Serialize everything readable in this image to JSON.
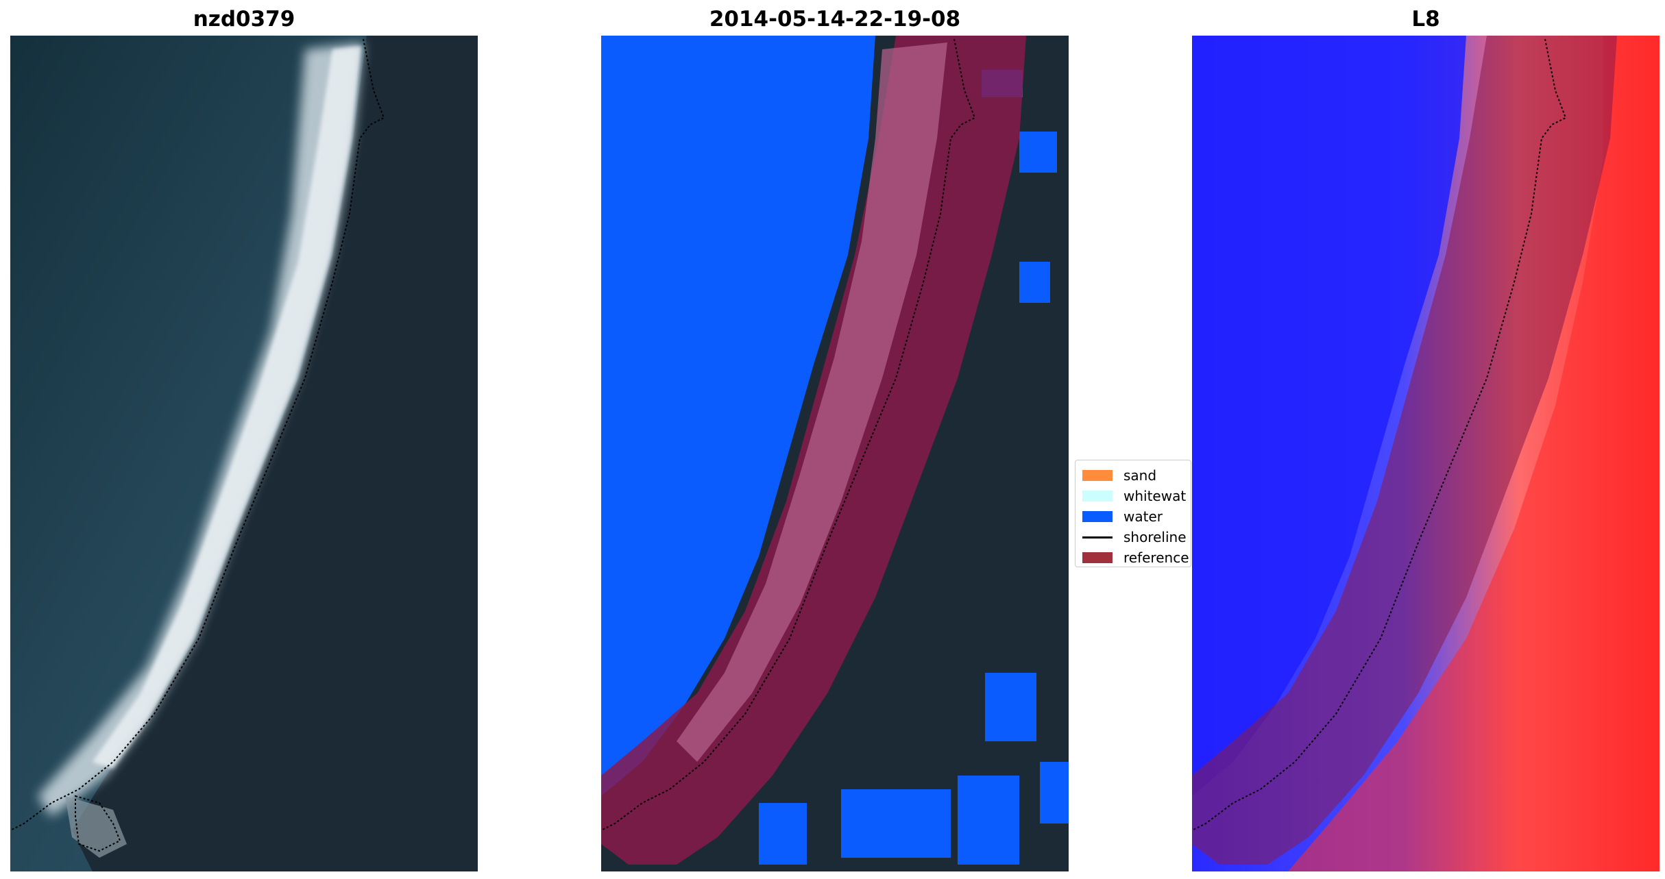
{
  "figure": {
    "panels": [
      {
        "title": "nzd0379"
      },
      {
        "title": "2014-05-14-22-19-08"
      },
      {
        "title": "L8"
      }
    ]
  },
  "legend": {
    "items": [
      {
        "label": "sand",
        "color": "#ff8c3a"
      },
      {
        "label": "whitewat",
        "color": "#ccfdff"
      },
      {
        "label": "water",
        "color": "#0a5cff"
      },
      {
        "label": "shoreline",
        "color": "#000000"
      },
      {
        "label": "reference",
        "color": "#a0303c"
      }
    ]
  },
  "colors": {
    "ocean": "#1f3a48",
    "land": "#1c2b36",
    "surf": "#e8eef2",
    "water_class": "#0a5cff",
    "buffer": "#8b1a4a",
    "index_high": "#ff1a1a",
    "index_low": "#1010ff"
  }
}
